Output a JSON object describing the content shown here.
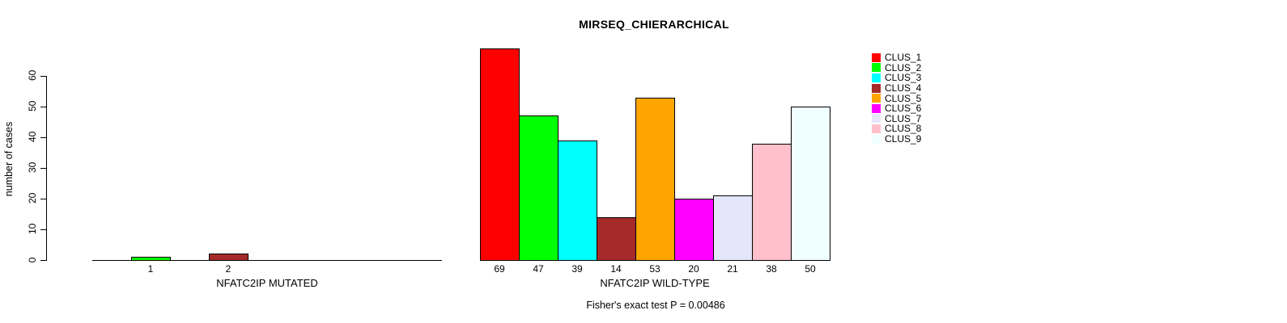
{
  "chart_data": {
    "type": "bar",
    "title": "MIRSEQ_CHIERARCHICAL",
    "ylabel": "number of cases",
    "ylim": [
      0,
      60
    ],
    "yticks": [
      0,
      10,
      20,
      30,
      40,
      50,
      60
    ],
    "grid": false,
    "legend_position": "right",
    "clusters": [
      {
        "name": "CLUS_1",
        "color": "#FF0000"
      },
      {
        "name": "CLUS_2",
        "color": "#00FF00"
      },
      {
        "name": "CLUS_3",
        "color": "#00FFFF"
      },
      {
        "name": "CLUS_4",
        "color": "#A52A2A"
      },
      {
        "name": "CLUS_5",
        "color": "#FFA500"
      },
      {
        "name": "CLUS_6",
        "color": "#FF00FF"
      },
      {
        "name": "CLUS_7",
        "color": "#E6E6FA"
      },
      {
        "name": "CLUS_8",
        "color": "#FFC0CB"
      },
      {
        "name": "CLUS_9",
        "color": "#F0FFFF"
      }
    ],
    "panels": [
      {
        "xlabel": "NFATC2IP MUTATED",
        "values": [
          0,
          1,
          0,
          2,
          0,
          0,
          0,
          0,
          0
        ]
      },
      {
        "xlabel": "NFATC2IP WILD-TYPE",
        "values": [
          69,
          47,
          39,
          14,
          53,
          20,
          21,
          38,
          50
        ]
      }
    ],
    "footnote": "Fisher's exact test P = 0.00486"
  }
}
